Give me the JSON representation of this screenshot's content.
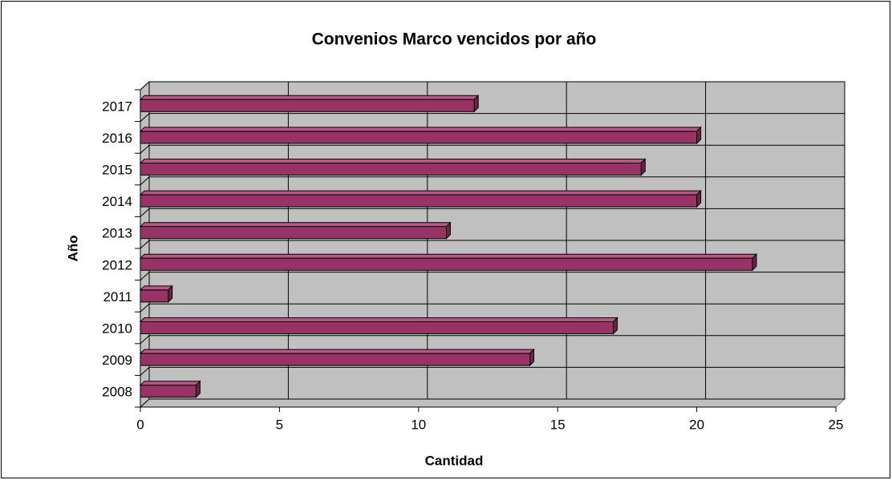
{
  "chart_data": {
    "type": "bar",
    "orientation": "horizontal",
    "title": "Convenios Marco vencidos por año",
    "x_label": "Cantidad",
    "y_label": "Año",
    "categories": [
      "2008",
      "2009",
      "2010",
      "2011",
      "2012",
      "2013",
      "2014",
      "2015",
      "2016",
      "2017"
    ],
    "values": [
      2,
      14,
      17,
      1,
      22,
      11,
      20,
      18,
      20,
      12
    ],
    "color": "#993366",
    "xlim": [
      0,
      25
    ],
    "xticks": [
      0,
      5,
      10,
      15,
      20,
      25
    ],
    "grid": true
  }
}
